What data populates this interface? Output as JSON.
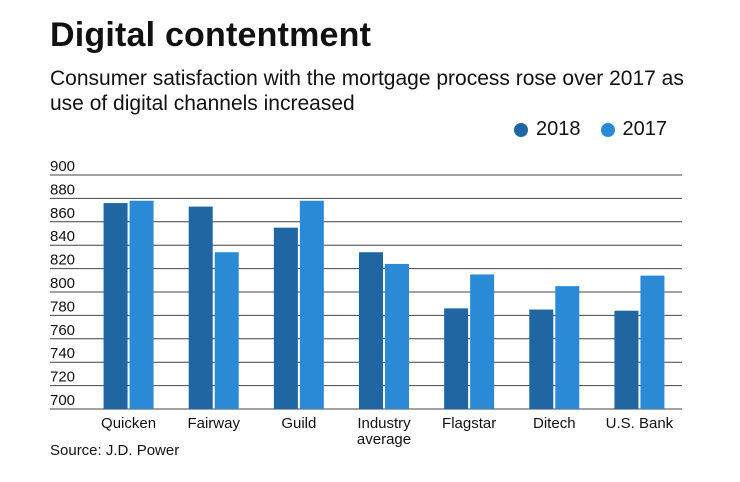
{
  "title": "Digital contentment",
  "subtitle": "Consumer satisfaction with the mortgage process rose over 2017 as use of digital channels increased",
  "source": "Source: J.D. Power",
  "colors": {
    "2018": "#1f66a2",
    "2017": "#2a8ad6",
    "grid": "#444444"
  },
  "chart_data": {
    "type": "bar",
    "title": "Digital contentment",
    "subtitle": "Consumer satisfaction with the mortgage process rose over 2017 as use of digital channels increased",
    "categories": [
      "Quicken",
      "Fairway",
      "Guild",
      "Industry\naverage",
      "Flagstar",
      "Ditech",
      "U.S. Bank"
    ],
    "series": [
      {
        "name": "2018",
        "values": [
          876,
          873,
          855,
          834,
          786,
          785,
          784
        ]
      },
      {
        "name": "2017",
        "values": [
          878,
          834,
          878,
          824,
          815,
          805,
          814
        ]
      }
    ],
    "ylim": [
      700,
      900
    ],
    "yticks": [
      700,
      720,
      740,
      760,
      780,
      800,
      820,
      840,
      860,
      880,
      900
    ],
    "grid": true,
    "legend": "top-right"
  }
}
